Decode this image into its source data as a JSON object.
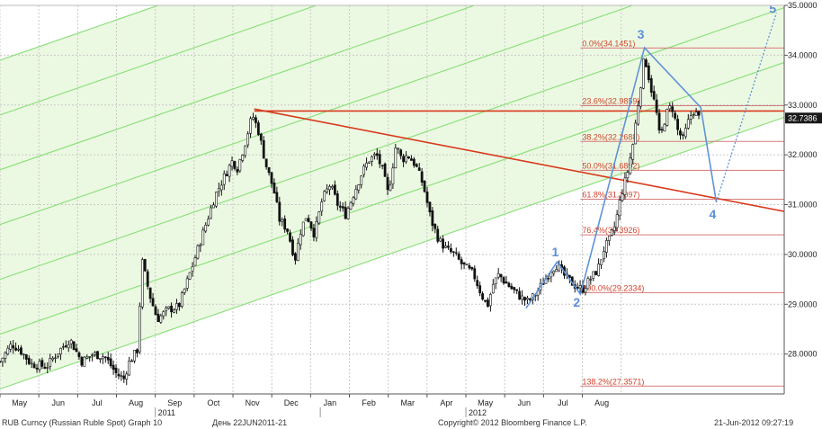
{
  "chart_data": {
    "type": "candlestick",
    "grid": true,
    "y_axis_side": "right",
    "ylim": [
      27.2,
      35.0
    ],
    "x_months": [
      "May",
      "Jun",
      "Jul",
      "Aug",
      "Sep",
      "Oct",
      "Nov",
      "Dec",
      "Jan",
      "Feb",
      "Mar",
      "Apr",
      "May",
      "Jun",
      "Jul",
      "Aug"
    ],
    "x_years": [
      {
        "label": "2011",
        "month_index": 4
      },
      {
        "label": "2012",
        "month_index": 12
      }
    ],
    "y_ticks": [
      "35.0000",
      "34.0000",
      "33.0000",
      "32.0000",
      "31.0000",
      "30.0000",
      "29.0000",
      "28.0000"
    ],
    "y_tick_values": [
      35,
      34,
      33,
      32,
      31,
      30,
      29,
      28
    ],
    "last_price": {
      "label": "32.7386",
      "value": 32.7386
    },
    "price_path": [
      [
        0.0,
        27.85
      ],
      [
        0.3,
        28.2
      ],
      [
        0.5,
        28.1
      ],
      [
        0.8,
        27.8
      ],
      [
        1.2,
        27.75
      ],
      [
        1.5,
        28.05
      ],
      [
        1.8,
        28.3
      ],
      [
        2.1,
        27.85
      ],
      [
        2.4,
        28.0
      ],
      [
        2.7,
        27.95
      ],
      [
        3.0,
        27.6
      ],
      [
        3.2,
        27.5
      ],
      [
        3.3,
        27.8
      ],
      [
        3.55,
        28.1
      ],
      [
        3.65,
        29.9
      ],
      [
        3.85,
        29.2
      ],
      [
        4.05,
        28.7
      ],
      [
        4.35,
        28.9
      ],
      [
        4.6,
        28.95
      ],
      [
        4.8,
        29.4
      ],
      [
        5.05,
        30.0
      ],
      [
        5.3,
        30.6
      ],
      [
        5.55,
        31.2
      ],
      [
        5.8,
        31.6
      ],
      [
        6.0,
        31.9
      ],
      [
        6.1,
        31.7
      ],
      [
        6.3,
        32.2
      ],
      [
        6.5,
        32.8
      ],
      [
        6.65,
        32.5
      ],
      [
        6.85,
        31.8
      ],
      [
        7.05,
        31.3
      ],
      [
        7.2,
        30.7
      ],
      [
        7.4,
        30.5
      ],
      [
        7.6,
        29.9
      ],
      [
        7.75,
        30.5
      ],
      [
        7.9,
        30.8
      ],
      [
        8.1,
        30.4
      ],
      [
        8.3,
        31.1
      ],
      [
        8.5,
        31.4
      ],
      [
        8.7,
        31.0
      ],
      [
        8.9,
        30.8
      ],
      [
        9.1,
        31.2
      ],
      [
        9.3,
        31.6
      ],
      [
        9.5,
        31.9
      ],
      [
        9.7,
        32.0
      ],
      [
        9.85,
        31.7
      ],
      [
        10.0,
        31.2
      ],
      [
        10.2,
        32.2
      ],
      [
        10.35,
        31.9
      ],
      [
        10.5,
        32.0
      ],
      [
        10.7,
        31.8
      ],
      [
        10.9,
        31.4
      ],
      [
        11.1,
        30.7
      ],
      [
        11.3,
        30.3
      ],
      [
        11.5,
        30.1
      ],
      [
        11.7,
        30.0
      ],
      [
        11.9,
        29.8
      ],
      [
        12.05,
        29.7
      ],
      [
        12.2,
        29.6
      ],
      [
        12.4,
        29.2
      ],
      [
        12.55,
        28.95
      ],
      [
        12.7,
        29.4
      ],
      [
        12.85,
        29.6
      ],
      [
        13.0,
        29.45
      ],
      [
        13.2,
        29.3
      ],
      [
        13.4,
        29.15
      ],
      [
        13.6,
        29.05
      ],
      [
        13.8,
        29.2
      ],
      [
        14.0,
        29.45
      ],
      [
        14.2,
        29.7
      ],
      [
        14.35,
        29.8
      ],
      [
        14.5,
        29.6
      ],
      [
        14.7,
        29.45
      ],
      [
        14.85,
        29.35
      ],
      [
        15.0,
        29.3
      ],
      [
        15.2,
        29.5
      ],
      [
        15.4,
        29.7
      ],
      [
        15.55,
        30.1
      ],
      [
        15.7,
        30.3
      ],
      [
        15.85,
        30.6
      ],
      [
        16.0,
        31.2
      ],
      [
        16.15,
        31.6
      ],
      [
        16.3,
        32.2
      ],
      [
        16.45,
        33.1
      ],
      [
        16.6,
        34.0
      ],
      [
        16.75,
        33.4
      ],
      [
        16.9,
        32.9
      ],
      [
        17.0,
        32.3
      ],
      [
        17.15,
        32.8
      ],
      [
        17.3,
        33.0
      ],
      [
        17.45,
        32.5
      ],
      [
        17.6,
        32.3
      ],
      [
        17.7,
        32.6
      ],
      [
        17.85,
        32.9
      ],
      [
        18.0,
        32.74
      ]
    ],
    "channel": {
      "slope_per_month": 0.27,
      "center_start": 27.3,
      "offsets": [
        0,
        1.1,
        2.2,
        3.3,
        4.4,
        5.5,
        6.6
      ]
    },
    "fibonacci": [
      {
        "label": "0.0%(34.1451)",
        "value": 34.1451
      },
      {
        "label": "23.6%(32.9859)",
        "value": 32.9859
      },
      {
        "label": "38.2%(32.2688)",
        "value": 32.2688
      },
      {
        "label": "50.0%(31.6892)",
        "value": 31.6892
      },
      {
        "label": "61.8%(31.1097)",
        "value": 31.1097
      },
      {
        "label": "76.4%(30.3926)",
        "value": 30.3926
      },
      {
        "label": "100.0%(29.2334)",
        "value": 29.2334
      },
      {
        "label": "138.2%(27.3571)",
        "value": 27.3571
      }
    ],
    "fib_start_month": 14.95,
    "horizontal_line": {
      "value": 32.88,
      "from_month": 6.55
    },
    "trend_line": {
      "from": [
        6.55,
        32.92
      ],
      "to": [
        20.3,
        30.85
      ]
    },
    "elliott_waves": [
      {
        "label": "1",
        "point": [
          14.35,
          29.85
        ]
      },
      {
        "label": "2",
        "point": [
          14.95,
          29.2
        ]
      },
      {
        "label": "3",
        "point": [
          16.6,
          34.15
        ]
      },
      {
        "label": "4",
        "point": [
          18.45,
          31.05
        ]
      },
      {
        "label": "5",
        "point": [
          20.0,
          34.85
        ]
      }
    ],
    "wave_start": [
      13.55,
      28.92
    ],
    "wave_4_turn": [
      18.05,
      32.95
    ]
  },
  "footer": {
    "instrument": "RUB Curncy (Russian Ruble Spot) Graph 10",
    "range": "День 22JUN2011-21",
    "copyright": "Copyright© 2012 Bloomberg Finance L.P.",
    "timestamp": "21-Jun-2012 09:27:19"
  },
  "colors": {
    "channel_fill": "#ecf9e2",
    "channel_line": "#8ee07f",
    "grid": "#c8c8c8",
    "fib": "#d67a7a",
    "fib_text": "#d0432d",
    "trend": "#d8391c",
    "wave": "#5f93d6",
    "wave_label": "#5b8fd8",
    "candle": "#111111",
    "last_price_bg": "#1a1a1a"
  }
}
